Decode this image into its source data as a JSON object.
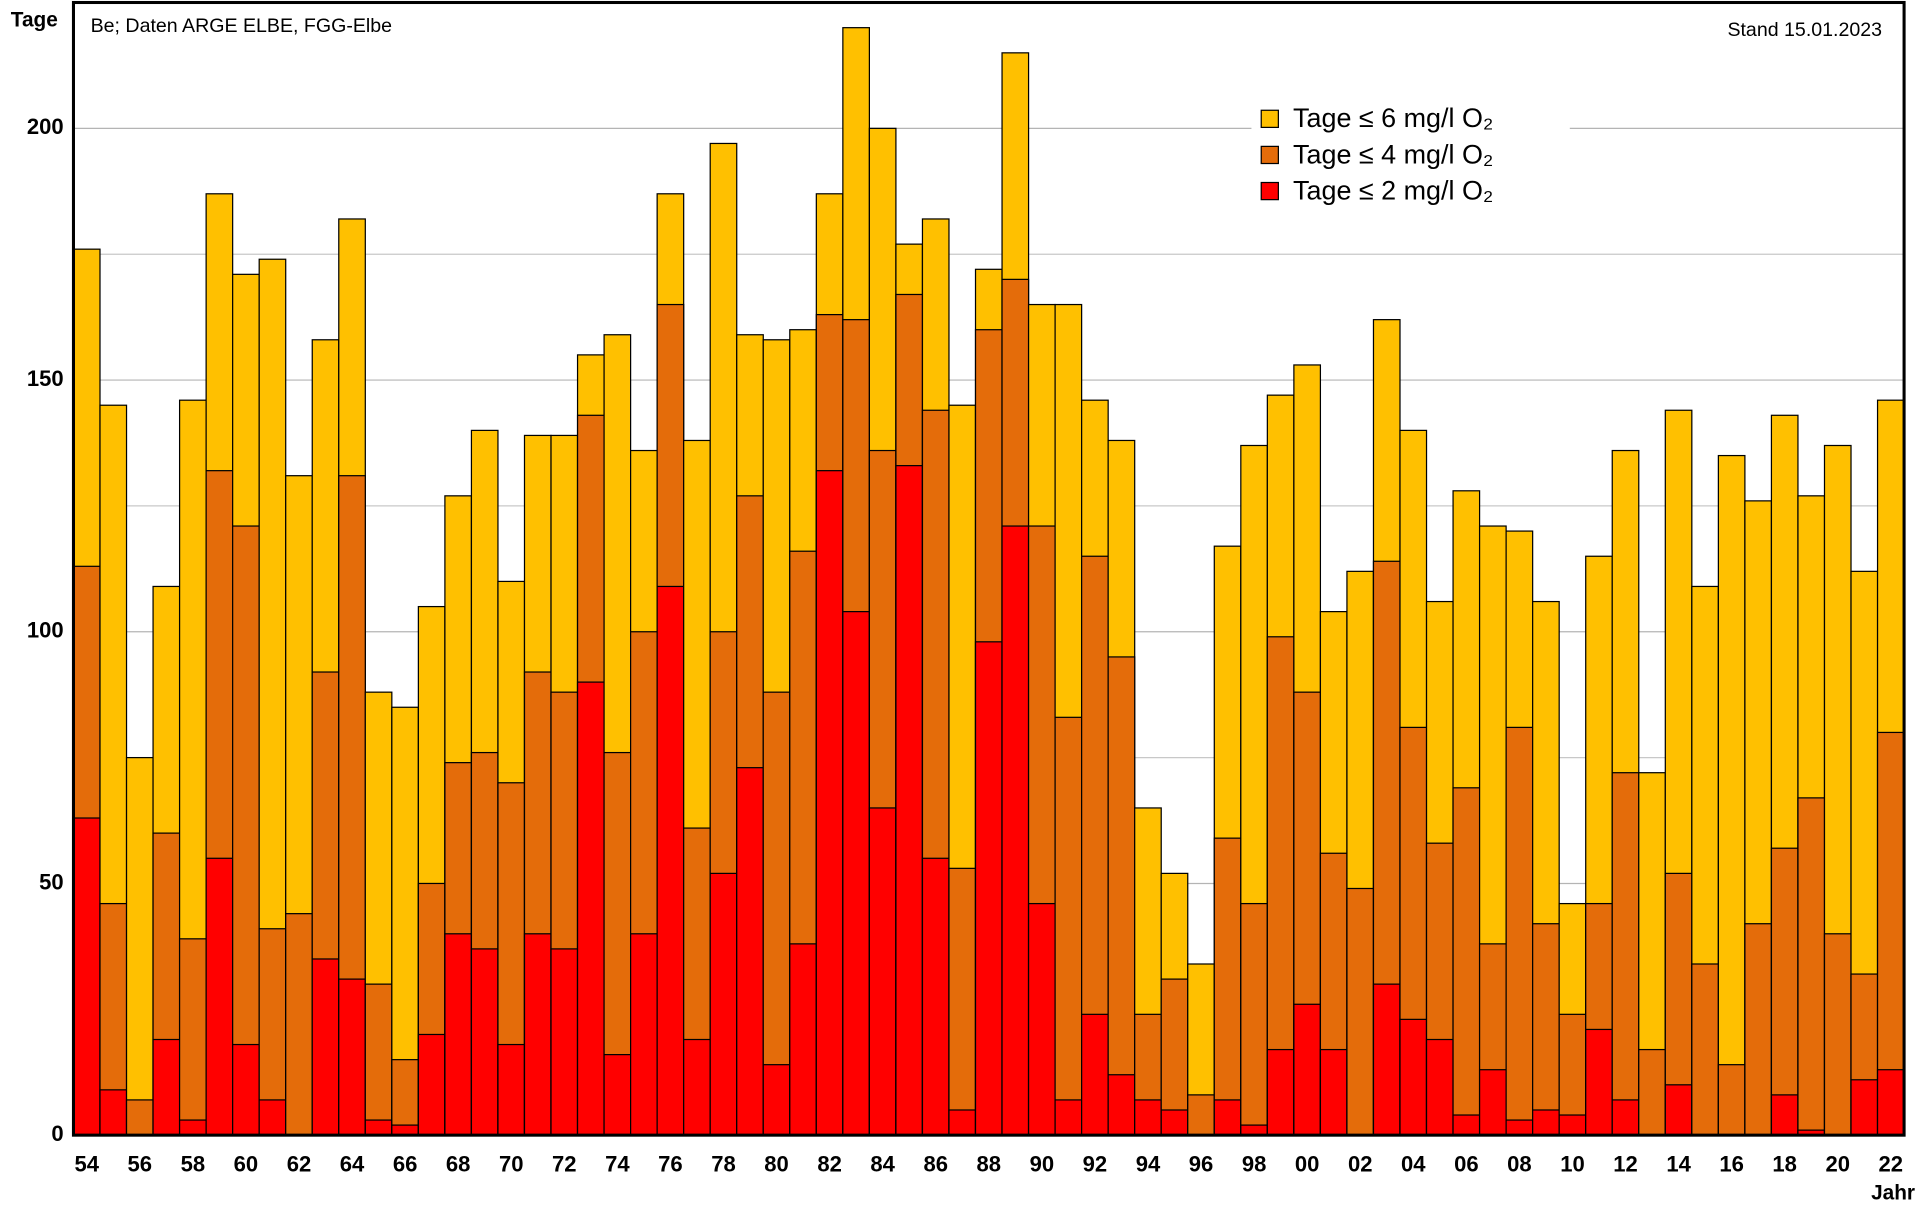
{
  "chart_data": {
    "type": "bar",
    "title": "Be; Daten ARGE ELBE, FGG-Elbe",
    "annotation": "Stand 15.01.2023",
    "ylabel": "Tage",
    "xlabel": "Jahr",
    "categories": [
      "54",
      null,
      "56",
      null,
      "58",
      null,
      "60",
      null,
      "62",
      null,
      "64",
      null,
      "66",
      null,
      "68",
      null,
      "70",
      null,
      "72",
      null,
      "74",
      null,
      "76",
      null,
      "78",
      null,
      "80",
      null,
      "82",
      null,
      "84",
      null,
      "86",
      null,
      "88",
      null,
      "90",
      null,
      "92",
      null,
      "94",
      null,
      "96",
      null,
      "98",
      null,
      "00",
      null,
      "02",
      null,
      "04",
      null,
      "06",
      null,
      "08",
      null,
      "10",
      null,
      "12",
      null,
      "14",
      null,
      "16",
      null,
      "18",
      null,
      "20",
      null,
      "22"
    ],
    "series": [
      {
        "name": "Tage ≤ 6  mg/l O₂",
        "color": "#ffc000",
        "values": [
          176,
          145,
          75,
          109,
          146,
          187,
          171,
          174,
          131,
          158,
          182,
          88,
          85,
          105,
          127,
          140,
          110,
          139,
          139,
          155,
          159,
          136,
          187,
          138,
          197,
          159,
          158,
          160,
          187,
          220,
          200,
          177,
          182,
          145,
          172,
          215,
          165,
          165,
          146,
          138,
          65,
          52,
          34,
          117,
          137,
          147,
          153,
          104,
          112,
          162,
          140,
          106,
          128,
          121,
          120,
          106,
          46,
          115,
          136,
          72,
          144,
          109,
          135,
          126,
          143,
          127,
          137,
          112,
          146
        ]
      },
      {
        "name": "Tage ≤ 4  mg/l O₂",
        "color": "#e46c0a",
        "values": [
          113,
          46,
          7,
          60,
          39,
          132,
          121,
          41,
          44,
          92,
          131,
          30,
          15,
          50,
          74,
          76,
          70,
          92,
          88,
          143,
          76,
          100,
          165,
          61,
          100,
          127,
          88,
          116,
          163,
          162,
          136,
          167,
          144,
          53,
          160,
          170,
          121,
          83,
          115,
          95,
          24,
          31,
          8,
          59,
          46,
          99,
          88,
          56,
          49,
          114,
          81,
          58,
          69,
          38,
          81,
          42,
          24,
          46,
          72,
          17,
          52,
          34,
          14,
          42,
          57,
          67,
          40,
          32,
          80
        ]
      },
      {
        "name": "Tage ≤ 2  mg/l O₂",
        "color": "#ff0000",
        "values": [
          63,
          9,
          0,
          19,
          3,
          55,
          18,
          7,
          0,
          35,
          31,
          3,
          2,
          20,
          40,
          37,
          18,
          40,
          37,
          90,
          16,
          40,
          109,
          19,
          52,
          73,
          14,
          38,
          132,
          104,
          65,
          133,
          55,
          5,
          98,
          121,
          46,
          7,
          24,
          12,
          7,
          5,
          0,
          7,
          2,
          17,
          26,
          17,
          0,
          30,
          23,
          19,
          4,
          13,
          3,
          5,
          4,
          21,
          7,
          0,
          10,
          0,
          0,
          0,
          8,
          1,
          0,
          11,
          13
        ]
      }
    ],
    "ylim": [
      0,
      225
    ],
    "yticks": [
      0,
      50,
      100,
      150,
      200
    ],
    "minor_yticks": [
      25,
      75,
      125,
      175
    ],
    "grid": true
  }
}
